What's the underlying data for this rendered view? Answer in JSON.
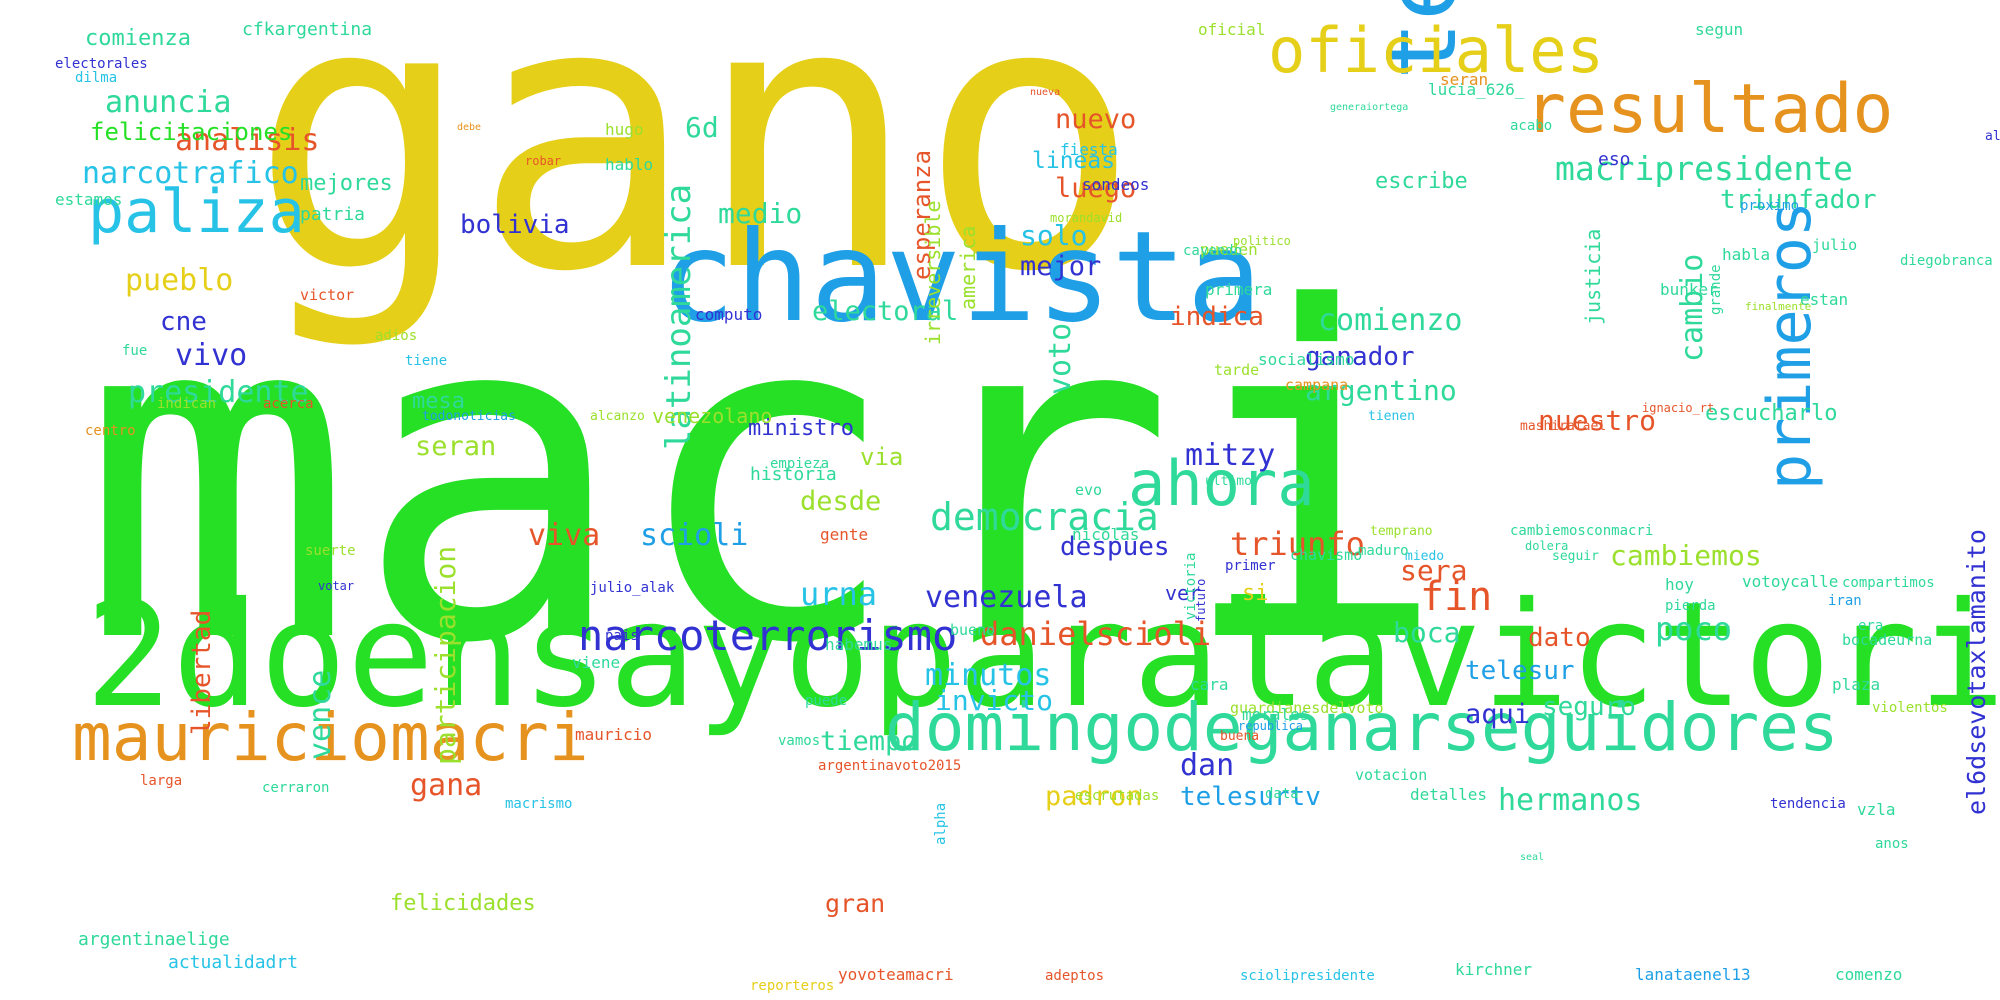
{
  "colors": {
    "yellow": "#e6cf19",
    "green": "#26e026",
    "cyan": "#27c3e6",
    "blue": "#1e9fe6",
    "orange": "#e6921e",
    "red": "#e6552a",
    "navy": "#3232d2",
    "teal": "#2ed99a",
    "lime": "#9be02c",
    "pink": "#e66a8a"
  },
  "words": [
    {
      "text": "gano",
      "color": "yellow"
    },
    {
      "text": "macri",
      "color": "green"
    },
    {
      "text": "2doensayoparalavictoria",
      "color": "green"
    },
    {
      "text": "chavista",
      "color": "blue"
    },
    {
      "text": "temblor",
      "color": "blue"
    },
    {
      "text": "domingodeganarseguidores",
      "color": "teal"
    },
    {
      "text": "mauriciomacri",
      "color": "orange"
    },
    {
      "text": "oficiales",
      "color": "yellow"
    },
    {
      "text": "resultado",
      "color": "orange"
    },
    {
      "text": "primeros",
      "color": "blue"
    },
    {
      "text": "paliza",
      "color": "cyan"
    },
    {
      "text": "ahora",
      "color": "teal"
    },
    {
      "text": "narcoterrorismo",
      "color": "navy"
    },
    {
      "text": "macripresidente",
      "color": "teal"
    },
    {
      "text": "narcotrafico",
      "color": "cyan"
    },
    {
      "text": "analisis",
      "color": "red"
    },
    {
      "text": "anuncia",
      "color": "teal"
    },
    {
      "text": "felicitaciones",
      "color": "green"
    },
    {
      "text": "pueblo",
      "color": "yellow"
    },
    {
      "text": "cne",
      "color": "navy"
    },
    {
      "text": "vivo",
      "color": "navy"
    },
    {
      "text": "presidente",
      "color": "teal"
    },
    {
      "text": "latinoamerica",
      "color": "teal"
    },
    {
      "text": "6d",
      "color": "teal"
    },
    {
      "text": "medio",
      "color": "teal"
    },
    {
      "text": "bolivia",
      "color": "navy"
    },
    {
      "text": "voto",
      "color": "teal"
    },
    {
      "text": "solo",
      "color": "cyan"
    },
    {
      "text": "mejor",
      "color": "navy"
    },
    {
      "text": "electoral",
      "color": "teal"
    },
    {
      "text": "nuevo",
      "color": "red"
    },
    {
      "text": "luego",
      "color": "red"
    },
    {
      "text": "lineas",
      "color": "cyan"
    },
    {
      "text": "cambio",
      "color": "teal"
    },
    {
      "text": "triunfador",
      "color": "teal"
    },
    {
      "text": "comienzo",
      "color": "teal"
    },
    {
      "text": "indica",
      "color": "red"
    },
    {
      "text": "ganador",
      "color": "navy"
    },
    {
      "text": "argentino",
      "color": "teal"
    },
    {
      "text": "nuestro",
      "color": "red"
    },
    {
      "text": "escucharlo",
      "color": "teal"
    },
    {
      "text": "el6dsevotaxlamanito",
      "color": "navy"
    },
    {
      "text": "democracia",
      "color": "teal"
    },
    {
      "text": "mitzy",
      "color": "navy"
    },
    {
      "text": "triunfo",
      "color": "red"
    },
    {
      "text": "venezuela",
      "color": "navy"
    },
    {
      "text": "danielscioli",
      "color": "red"
    },
    {
      "text": "minutos",
      "color": "cyan"
    },
    {
      "text": "invicto",
      "color": "cyan"
    },
    {
      "text": "urna",
      "color": "cyan"
    },
    {
      "text": "scioli",
      "color": "blue"
    },
    {
      "text": "viva",
      "color": "red"
    },
    {
      "text": "participacion",
      "color": "lime"
    },
    {
      "text": "vence",
      "color": "teal"
    },
    {
      "text": "libertad",
      "color": "red"
    },
    {
      "text": "gana",
      "color": "red"
    },
    {
      "text": "hermanos",
      "color": "teal"
    },
    {
      "text": "padron",
      "color": "yellow"
    },
    {
      "text": "telesurtv",
      "color": "blue"
    },
    {
      "text": "dan",
      "color": "navy"
    },
    {
      "text": "tiempo",
      "color": "teal"
    },
    {
      "text": "aqui",
      "color": "navy"
    },
    {
      "text": "seguro",
      "color": "teal"
    },
    {
      "text": "telesur",
      "color": "blue"
    },
    {
      "text": "dato",
      "color": "red"
    },
    {
      "text": "poco",
      "color": "teal"
    },
    {
      "text": "fin",
      "color": "red"
    },
    {
      "text": "sera",
      "color": "red"
    },
    {
      "text": "boca",
      "color": "teal"
    },
    {
      "text": "cambiemos",
      "color": "lime"
    },
    {
      "text": "despues",
      "color": "navy"
    },
    {
      "text": "desde",
      "color": "lime"
    },
    {
      "text": "via",
      "color": "lime"
    },
    {
      "text": "seran",
      "color": "lime"
    },
    {
      "text": "mesa",
      "color": "teal"
    },
    {
      "text": "ministro",
      "color": "navy"
    },
    {
      "text": "esperanza",
      "color": "red"
    },
    {
      "text": "irreversible",
      "color": "lime"
    },
    {
      "text": "venezolano",
      "color": "lime"
    },
    {
      "text": "america",
      "color": "lime"
    },
    {
      "text": "historia",
      "color": "teal"
    },
    {
      "text": "justicia",
      "color": "teal"
    },
    {
      "text": "gran",
      "color": "red"
    },
    {
      "text": "mejores",
      "color": "teal"
    },
    {
      "text": "patria",
      "color": "teal"
    },
    {
      "text": "comienza",
      "color": "teal"
    },
    {
      "text": "cfkargentina",
      "color": "teal"
    },
    {
      "text": "escribe",
      "color": "teal"
    },
    {
      "text": "si",
      "color": "yellow"
    },
    {
      "text": "ver",
      "color": "navy"
    },
    {
      "text": "felicidades",
      "color": "lime"
    },
    {
      "text": "argentinaelige",
      "color": "teal"
    },
    {
      "text": "actualidadrt",
      "color": "cyan"
    },
    {
      "text": "yovoteamacri",
      "color": "red"
    },
    {
      "text": "lanataenel13",
      "color": "blue"
    },
    {
      "text": "kirchner",
      "color": "teal"
    },
    {
      "text": "comenzo",
      "color": "teal"
    },
    {
      "text": "estamos",
      "color": "teal"
    },
    {
      "text": "oficial",
      "color": "lime"
    },
    {
      "text": "segun",
      "color": "teal"
    },
    {
      "text": "electorales",
      "color": "navy"
    },
    {
      "text": "dilma",
      "color": "cyan"
    },
    {
      "text": "hugo",
      "color": "lime"
    },
    {
      "text": "acabo",
      "color": "teal"
    },
    {
      "text": "lucia_626_",
      "color": "teal"
    },
    {
      "text": "proximo",
      "color": "blue"
    },
    {
      "text": "alak",
      "color": "navy"
    },
    {
      "text": "eso",
      "color": "navy"
    },
    {
      "text": "hablo",
      "color": "teal"
    },
    {
      "text": "sondeos",
      "color": "navy"
    },
    {
      "text": "fiesta",
      "color": "cyan"
    },
    {
      "text": "computo",
      "color": "navy"
    },
    {
      "text": "socialismo",
      "color": "teal"
    },
    {
      "text": "campana",
      "color": "orange"
    },
    {
      "text": "bunker",
      "color": "teal"
    },
    {
      "text": "estan",
      "color": "teal"
    },
    {
      "text": "diegobranca",
      "color": "teal"
    },
    {
      "text": "grande",
      "color": "teal"
    },
    {
      "text": "habla",
      "color": "teal"
    },
    {
      "text": "julio",
      "color": "teal"
    },
    {
      "text": "pueden",
      "color": "lime"
    },
    {
      "text": "cayendo",
      "color": "teal"
    },
    {
      "text": "primera",
      "color": "teal"
    },
    {
      "text": "tarde",
      "color": "lime"
    },
    {
      "text": "ignacio_rt",
      "color": "red"
    },
    {
      "text": "tienen",
      "color": "cyan"
    },
    {
      "text": "mashirafael",
      "color": "red"
    },
    {
      "text": "todonoticias",
      "color": "blue"
    },
    {
      "text": "alcanzo",
      "color": "lime"
    },
    {
      "text": "centro",
      "color": "orange"
    },
    {
      "text": "fue",
      "color": "teal"
    },
    {
      "text": "victor",
      "color": "red"
    },
    {
      "text": "adios",
      "color": "lime"
    },
    {
      "text": "tiene",
      "color": "cyan"
    },
    {
      "text": "indican",
      "color": "lime"
    },
    {
      "text": "acerca",
      "color": "red"
    },
    {
      "text": "robar",
      "color": "red"
    },
    {
      "text": "debe",
      "color": "orange"
    },
    {
      "text": "finalmente",
      "color": "lime"
    },
    {
      "text": "morandavid",
      "color": "lime"
    },
    {
      "text": "generaiortega",
      "color": "teal"
    },
    {
      "text": "politico",
      "color": "lime"
    },
    {
      "text": "empieza",
      "color": "teal"
    },
    {
      "text": "ultimo",
      "color": "teal"
    },
    {
      "text": "evo",
      "color": "teal"
    },
    {
      "text": "gente",
      "color": "red"
    },
    {
      "text": "nicolas",
      "color": "teal"
    },
    {
      "text": "habemus",
      "color": "teal"
    },
    {
      "text": "republica",
      "color": "blue"
    },
    {
      "text": "chavismo",
      "color": "teal"
    },
    {
      "text": "miedo",
      "color": "cyan"
    },
    {
      "text": "bueno",
      "color": "teal"
    },
    {
      "text": "maduro",
      "color": "teal"
    },
    {
      "text": "temprano",
      "color": "lime"
    },
    {
      "text": "cambiemosconmacri",
      "color": "teal"
    },
    {
      "text": "dolera",
      "color": "teal"
    },
    {
      "text": "seguir",
      "color": "teal"
    },
    {
      "text": "suerte",
      "color": "lime"
    },
    {
      "text": "votar",
      "color": "navy"
    },
    {
      "text": "julio_alak",
      "color": "navy"
    },
    {
      "text": "pais",
      "color": "navy"
    },
    {
      "text": "mauricio",
      "color": "red"
    },
    {
      "text": "puede",
      "color": "teal"
    },
    {
      "text": "primer",
      "color": "navy"
    },
    {
      "text": "hoy",
      "color": "teal"
    },
    {
      "text": "pierda",
      "color": "teal"
    },
    {
      "text": "votoycalle",
      "color": "teal"
    },
    {
      "text": "compartimos",
      "color": "teal"
    },
    {
      "text": "iran",
      "color": "blue"
    },
    {
      "text": "era",
      "color": "teal"
    },
    {
      "text": "victoria",
      "color": "teal"
    },
    {
      "text": "futuro",
      "color": "navy"
    },
    {
      "text": "viene",
      "color": "teal"
    },
    {
      "text": "cara",
      "color": "teal"
    },
    {
      "text": "bocadeurna",
      "color": "teal"
    },
    {
      "text": "plaza",
      "color": "teal"
    },
    {
      "text": "violentos",
      "color": "lime"
    },
    {
      "text": "guardianesdelvoto",
      "color": "lime"
    },
    {
      "text": "morales",
      "color": "teal"
    },
    {
      "text": "buena",
      "color": "red"
    },
    {
      "text": "vamos",
      "color": "teal"
    },
    {
      "text": "argentinavoto2015",
      "color": "red"
    },
    {
      "text": "votacion",
      "color": "teal"
    },
    {
      "text": "detalles",
      "color": "teal"
    },
    {
      "text": "tendencia",
      "color": "navy"
    },
    {
      "text": "vzla",
      "color": "teal"
    },
    {
      "text": "larga",
      "color": "red"
    },
    {
      "text": "cerraron",
      "color": "teal"
    },
    {
      "text": "macrismo",
      "color": "cyan"
    },
    {
      "text": "escrutadas",
      "color": "lime"
    },
    {
      "text": "data",
      "color": "teal"
    },
    {
      "text": "alpha",
      "color": "cyan"
    },
    {
      "text": "anos",
      "color": "teal"
    },
    {
      "text": "reporteros",
      "color": "yellow"
    },
    {
      "text": "adeptos",
      "color": "red"
    },
    {
      "text": "sciolipresidente",
      "color": "cyan"
    },
    {
      "text": "seal",
      "color": "teal"
    },
    {
      "text": "nueva",
      "color": "red"
    },
    {
      "text": "seran",
      "color": "orange"
    }
  ]
}
